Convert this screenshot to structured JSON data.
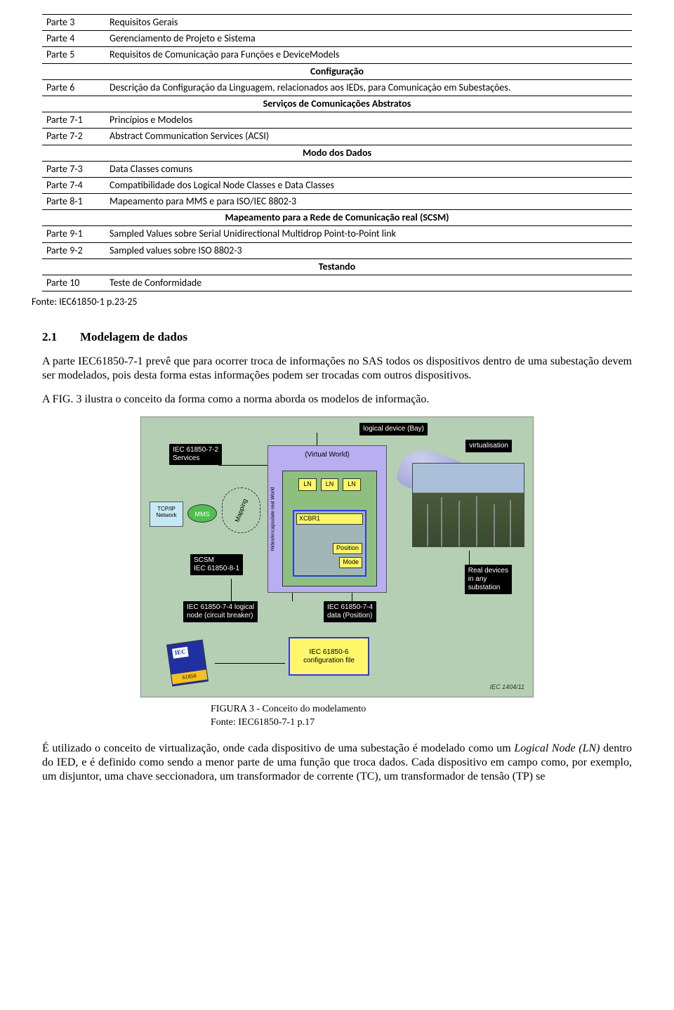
{
  "table": {
    "rows": [
      {
        "c1": "Parte 3",
        "c2": "Requisitos Gerais"
      },
      {
        "c1": "Parte 4",
        "c2": "Gerenciamento de Projeto e Sistema"
      },
      {
        "c1": "Parte 5",
        "c2": "Requisitos de Comunicação para Funções e DeviceModels"
      }
    ],
    "section1": "Configuração",
    "rows2": [
      {
        "c1": "Parte 6",
        "c2": "Descrição da Configuração da Linguagem, relacionados aos IEDs, para Comunicação em Subestações."
      }
    ],
    "section2": "Serviços de Comunicações Abstratos",
    "rows3": [
      {
        "c1": "Parte 7-1",
        "c2": "Princípios e Modelos"
      },
      {
        "c1": "Parte 7-2",
        "c2": "Abstract Communication Services (ACSI)"
      }
    ],
    "section3": "Modo dos Dados",
    "rows4": [
      {
        "c1": "Parte 7-3",
        "c2": "Data Classes comuns"
      },
      {
        "c1": "Parte 7-4",
        "c2": "Compatibilidade dos Logical Node Classes e Data Classes"
      },
      {
        "c1": "Parte 8-1",
        "c2": "Mapeamento para MMS e para ISO/IEC 8802-3"
      }
    ],
    "section4": "Mapeamento para a Rede de Comunicação real (SCSM)",
    "rows5": [
      {
        "c1": "Parte 9-1",
        "c2": "Sampled Values sobre Serial Unidirectional Multidrop Point-to-Point link"
      },
      {
        "c1": "Parte 9-2",
        "c2": "Sampled values sobre ISO 8802-3"
      }
    ],
    "section5": "Testando",
    "rows6": [
      {
        "c1": "Parte 10",
        "c2": "Teste de Conformidade"
      }
    ]
  },
  "source_note": "Fonte: IEC61850-1 p.23-25",
  "section_num": "2.1",
  "section_title": "Modelagem de dados",
  "para1": "A parte IEC61850-7-1 prevê que para ocorrer troca de informações no SAS todos os dispositivos dentro de uma subestação devem ser modelados, pois desta forma estas informações podem ser trocadas com outros dispositivos.",
  "para2": "A FIG. 3 ilustra o conceito da forma como a norma aborda os modelos de informação.",
  "figure": {
    "labels": {
      "iec_services": "IEC 61850-7-2\nServices",
      "logical_device": "logical device (Bay)",
      "virtualisation": "virtualisation",
      "virtual_world": "(Virtual World)",
      "hides": "Hides/encapsulate real World",
      "ln": "LN",
      "xcbr": "XCBR1",
      "position": "Position",
      "mode": "Mode",
      "tcpip": "TCP/IP\nNetwork",
      "mms": "MMS",
      "mapping": "Mapping",
      "scsm": "SCSM\nIEC 61850-8-1",
      "logical_node": "IEC 61850-7-4 logical\nnode (circuit breaker)",
      "data_position": "IEC 61850-7-4\ndata (Position)",
      "real_devices": "Real devices\nin any\nsubstation",
      "config_file": "IEC 61850-6\nconfiguration file",
      "iec_ref": "IEC   1404/11"
    },
    "caption_line1": "FIGURA 3 - Conceito do modelamento",
    "caption_line2": "Fonte: IEC61850-7-1 p.17"
  },
  "para3_pre": "É utilizado o conceito de virtualização, onde cada dispositivo de uma subestação é modelado como um ",
  "para3_italic": "Logical Node (LN) ",
  "para3_post": "dentro do IED, e é definido como sendo a menor parte de uma função que troca dados. Cada dispositivo em campo como, por exemplo, um disjuntor, uma chave seccionadora, um transformador de corrente (TC), um transformador de tensão (TP) se"
}
